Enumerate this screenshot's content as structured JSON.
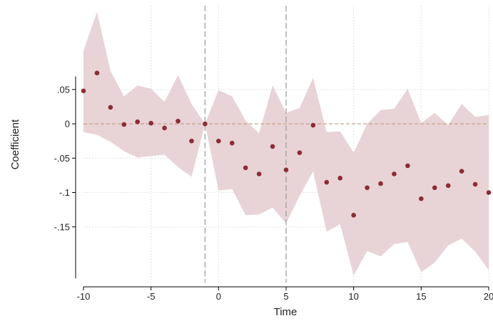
{
  "chart_data": {
    "type": "scatter",
    "xlabel": "Time",
    "ylabel": "Coefficient",
    "xlim": [
      -10,
      20
    ],
    "ylim": [
      -0.225,
      0.072
    ],
    "x_ticks": [
      -10,
      -5,
      0,
      5,
      10,
      15,
      20
    ],
    "x_tick_labels": [
      "-10",
      "-5",
      "0",
      "5",
      "10",
      "15",
      "20"
    ],
    "y_ticks": [
      0.05,
      0,
      -0.05,
      -0.1,
      -0.15
    ],
    "y_tick_labels": [
      ".05",
      "0",
      "-.05",
      "-.1",
      "-.15"
    ],
    "grid": true,
    "reference_lines": {
      "vertical": [
        -1,
        5
      ],
      "horizontal": [
        0
      ]
    },
    "colors": {
      "point": "#8b2c35",
      "band": "#e8d3d6",
      "zero_line": "#c8a282",
      "vline": "#a0a0a0",
      "grid": "#d8d8d8"
    },
    "series": [
      {
        "x": [
          -10,
          -9,
          -8,
          -7,
          -6,
          -5,
          -4,
          -3,
          -2,
          -1,
          0,
          1,
          2,
          3,
          4,
          5,
          6,
          7,
          8,
          9,
          10,
          11,
          12,
          13,
          14,
          15,
          16,
          17,
          18,
          19,
          20
        ],
        "values": [
          0.048,
          0.074,
          0.024,
          -0.001,
          0.003,
          0.001,
          -0.006,
          0.004,
          -0.025,
          0,
          -0.025,
          -0.028,
          -0.064,
          -0.073,
          -0.033,
          -0.067,
          -0.042,
          -0.002,
          -0.085,
          -0.079,
          -0.133,
          -0.093,
          -0.087,
          -0.073,
          -0.061,
          -0.109,
          -0.093,
          -0.09,
          -0.069,
          -0.088,
          -0.1
        ],
        "ci_upper": [
          0.106,
          0.163,
          0.077,
          0.04,
          0.056,
          0.051,
          0.032,
          0.071,
          0.029,
          0,
          0.049,
          0.04,
          0.005,
          -0.014,
          0.056,
          0.016,
          0.023,
          0.067,
          -0.012,
          -0.011,
          -0.042,
          0.0,
          0.02,
          0.022,
          0.051,
          0.001,
          0.016,
          -0.002,
          0.029,
          0.01,
          0.013
        ],
        "ci_lower": [
          -0.012,
          -0.016,
          -0.026,
          -0.04,
          -0.049,
          -0.047,
          -0.045,
          -0.063,
          -0.077,
          0,
          -0.097,
          -0.095,
          -0.133,
          -0.132,
          -0.122,
          -0.145,
          -0.105,
          -0.069,
          -0.157,
          -0.146,
          -0.221,
          -0.185,
          -0.193,
          -0.175,
          -0.172,
          -0.216,
          -0.202,
          -0.177,
          -0.167,
          -0.186,
          -0.213
        ]
      }
    ]
  }
}
